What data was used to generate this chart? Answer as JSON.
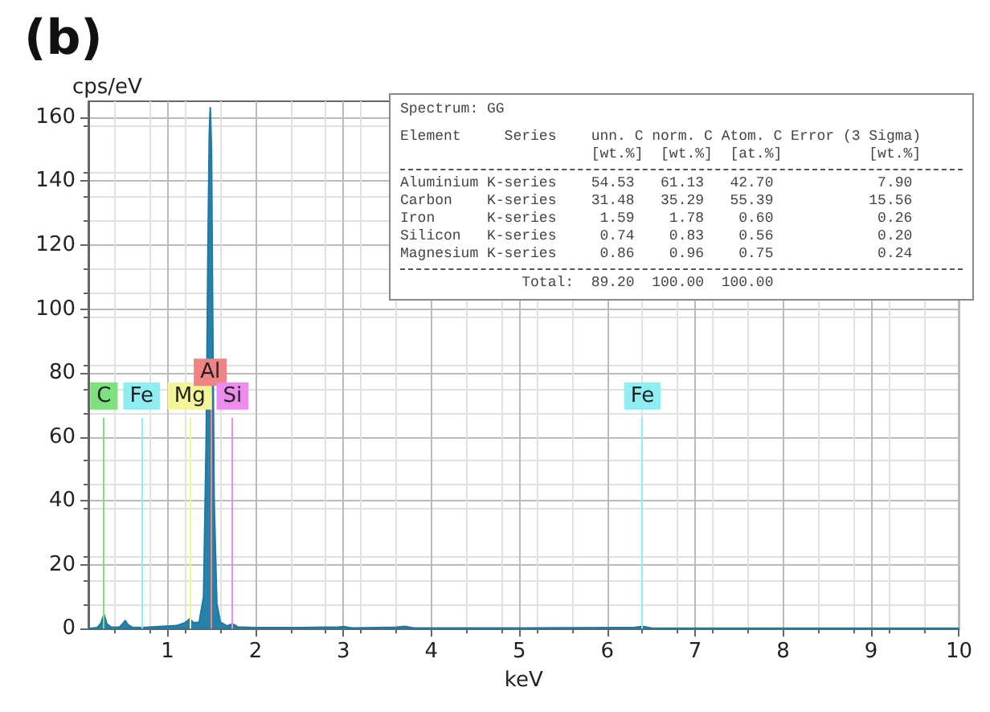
{
  "chart_data": {
    "type": "area",
    "title": "(b)",
    "xlabel": "keV",
    "ylabel": "cps/eV",
    "xlim": [
      0.1,
      10
    ],
    "xticks": [
      1,
      2,
      3,
      4,
      5,
      6,
      7,
      8,
      9,
      10
    ],
    "ylim": [
      0,
      165
    ],
    "yticks": [
      0,
      20,
      40,
      60,
      80,
      100,
      120,
      140,
      160
    ],
    "grid": true,
    "marker": "none",
    "series": [
      {
        "color": "#1b7aa3",
        "x": [
          0.1,
          0.2,
          0.24,
          0.277,
          0.31,
          0.36,
          0.45,
          0.49,
          0.52,
          0.55,
          0.6,
          0.7,
          0.9,
          1.1,
          1.2,
          1.25,
          1.3,
          1.36,
          1.41,
          1.44,
          1.46,
          1.475,
          1.486,
          1.5,
          1.51,
          1.53,
          1.56,
          1.6,
          1.68,
          1.74,
          1.8,
          2.0,
          2.5,
          2.95,
          3.0,
          3.1,
          3.6,
          3.7,
          3.8,
          5.0,
          6.3,
          6.4,
          6.5,
          8.0,
          10.0
        ],
        "values": [
          0,
          0.3,
          1.5,
          4.5,
          1.5,
          0.4,
          0.4,
          1.5,
          2.5,
          1.2,
          0.4,
          0.3,
          0.6,
          0.9,
          1.8,
          3,
          1.8,
          2,
          10,
          60,
          120,
          155,
          163,
          150,
          110,
          40,
          8,
          2,
          0.8,
          1.5,
          0.5,
          0.3,
          0.3,
          0.5,
          0.6,
          0.2,
          0.4,
          0.7,
          0.2,
          0.2,
          0.3,
          0.7,
          0.2,
          0.1,
          0.1
        ]
      }
    ],
    "ref_lines": [
      {
        "axis": "x",
        "value": 0.277,
        "label": "C",
        "color": "#7ee07e"
      },
      {
        "axis": "x",
        "value": 0.705,
        "label": "Fe",
        "color": "#8eeef2"
      },
      {
        "axis": "x",
        "value": 1.253,
        "label": "Mg",
        "color": "#f4f49a"
      },
      {
        "axis": "x",
        "value": 1.486,
        "label": "Al",
        "color": "#f08484"
      },
      {
        "axis": "x",
        "value": 1.739,
        "label": "Si",
        "color": "#ee8cee"
      },
      {
        "axis": "x",
        "value": 6.4,
        "label": "Fe",
        "color": "#8eeef2"
      }
    ],
    "annotations": [
      "Spectrum: GG",
      "Element     Series    unn. C norm. C Atom. C Error (3 Sigma)",
      "                      [wt.%]  [wt.%]  [at.%]          [wt.%]",
      "Aluminium K-series    54.53   61.13   42.70            7.90",
      "Carbon    K-series    31.48   35.29   55.39           15.56",
      "Iron      K-series     1.59    1.78    0.60            0.26",
      "Silicon   K-series     0.74    0.83    0.56            0.20",
      "Magnesium K-series     0.86    0.96    0.75            0.24",
      "              Total:  89.20  100.00  100.00"
    ]
  }
}
